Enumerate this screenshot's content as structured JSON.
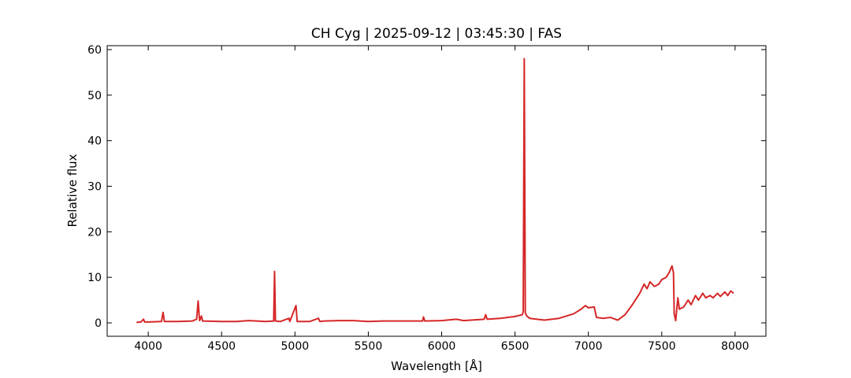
{
  "chart_data": {
    "type": "line",
    "title": "CH Cyg | 2025-09-12 | 03:45:30 | FAS",
    "x_label": "Wavelength [Å]",
    "y_label": "Relative flux",
    "x": [
      3920,
      3950,
      3968,
      3975,
      4000,
      4090,
      4101,
      4110,
      4200,
      4300,
      4330,
      4340,
      4350,
      4363,
      4370,
      4500,
      4600,
      4686,
      4800,
      4855,
      4861,
      4867,
      4900,
      4959,
      4965,
      5007,
      5015,
      5100,
      5160,
      5170,
      5200,
      5300,
      5400,
      5500,
      5600,
      5700,
      5800,
      5870,
      5876,
      5885,
      6000,
      6100,
      6150,
      6200,
      6290,
      6300,
      6310,
      6400,
      6500,
      6550,
      6556,
      6563,
      6570,
      6580,
      6600,
      6700,
      6800,
      6900,
      6950,
      6980,
      7000,
      7040,
      7055,
      7100,
      7150,
      7200,
      7250,
      7300,
      7330,
      7350,
      7380,
      7400,
      7420,
      7450,
      7480,
      7500,
      7530,
      7550,
      7570,
      7580,
      7585,
      7595,
      7610,
      7620,
      7650,
      7680,
      7700,
      7730,
      7750,
      7780,
      7800,
      7830,
      7850,
      7880,
      7900,
      7930,
      7950,
      7970,
      7990
    ],
    "series": [
      {
        "name": "CH Cyg",
        "color": "#d62728",
        "values": [
          0.1,
          0.2,
          0.8,
          0.2,
          0.2,
          0.3,
          2.3,
          0.3,
          0.3,
          0.4,
          0.8,
          4.8,
          0.5,
          1.5,
          0.4,
          0.3,
          0.3,
          0.5,
          0.3,
          0.4,
          11.3,
          0.4,
          0.3,
          1.0,
          0.3,
          3.8,
          0.3,
          0.3,
          1.0,
          0.3,
          0.4,
          0.5,
          0.5,
          0.3,
          0.4,
          0.4,
          0.4,
          0.4,
          1.3,
          0.4,
          0.5,
          0.8,
          0.5,
          0.6,
          0.8,
          1.8,
          0.8,
          1.0,
          1.4,
          1.8,
          2.5,
          58.0,
          2.2,
          1.5,
          1.0,
          0.6,
          1.0,
          2.0,
          3.0,
          3.8,
          3.3,
          3.5,
          1.2,
          1.0,
          1.2,
          0.6,
          1.8,
          4.0,
          5.5,
          6.5,
          8.5,
          7.5,
          9.0,
          8.0,
          8.5,
          9.5,
          10.0,
          11.0,
          12.5,
          11.0,
          2.0,
          0.5,
          5.5,
          3.0,
          3.5,
          5.0,
          4.0,
          6.0,
          5.0,
          6.5,
          5.5,
          6.0,
          5.5,
          6.5,
          5.8,
          6.8,
          6.0,
          7.0,
          6.5
        ]
      }
    ],
    "xlim": [
      3720,
      8210
    ],
    "ylim": [
      -2.94,
      60.86
    ],
    "xticks": [
      4000,
      4500,
      5000,
      5500,
      6000,
      6500,
      7000,
      7500,
      8000
    ],
    "yticks": [
      0,
      10,
      20,
      30,
      40,
      50,
      60
    ],
    "grid": false
  }
}
